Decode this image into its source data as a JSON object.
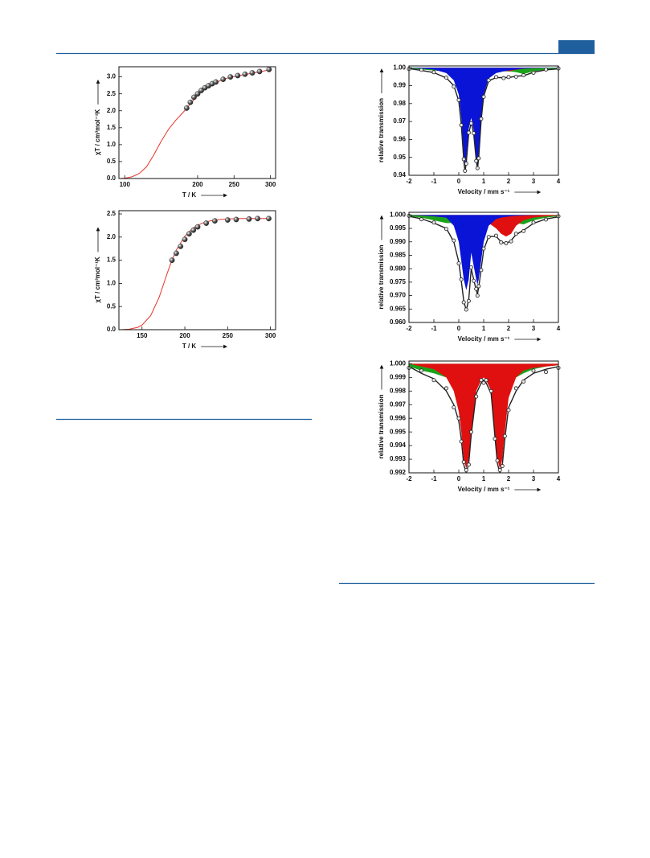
{
  "chart_data": [
    {
      "type": "scatter",
      "x_label": "T / K",
      "y_label": "χT / cm³mol⁻¹K",
      "xlim": [
        92,
        307
      ],
      "xticks": [
        100,
        200,
        250,
        300
      ],
      "ylim": [
        0,
        3.3
      ],
      "yticks": [
        {
          "value": 0,
          "label": "0.0"
        },
        0.5,
        {
          "value": 1,
          "label": "1.0"
        },
        1.5,
        {
          "value": 2,
          "label": "2.0"
        },
        2.5,
        {
          "value": 3,
          "label": "3.0"
        }
      ],
      "series": [
        {
          "style": "line",
          "color": "#e8332a",
          "x": [
            95,
            100,
            110,
            120,
            130,
            140,
            150,
            160,
            170,
            180,
            190,
            200,
            210,
            220,
            230,
            240,
            250,
            260,
            270,
            280,
            290,
            300
          ],
          "values": [
            0.005,
            0.01,
            0.05,
            0.15,
            0.35,
            0.7,
            1.1,
            1.45,
            1.72,
            1.95,
            2.2,
            2.45,
            2.65,
            2.78,
            2.88,
            2.96,
            3.01,
            3.05,
            3.09,
            3.13,
            3.17,
            3.22
          ]
        },
        {
          "style": "points",
          "color": "#333333",
          "x": [
            185,
            190,
            195,
            200,
            205,
            210,
            215,
            220,
            225,
            235,
            245,
            255,
            265,
            275,
            285,
            298
          ],
          "values": [
            2.08,
            2.25,
            2.4,
            2.5,
            2.6,
            2.68,
            2.74,
            2.8,
            2.85,
            2.93,
            3.0,
            3.04,
            3.08,
            3.12,
            3.16,
            3.22
          ]
        }
      ]
    },
    {
      "type": "scatter",
      "x_label": "T / K",
      "y_label": "χT / cm³mol⁻¹K",
      "xlim": [
        123,
        306
      ],
      "xticks": [
        150,
        200,
        250,
        300
      ],
      "ylim": [
        0,
        2.57
      ],
      "yticks": [
        {
          "value": 0,
          "label": "0.0"
        },
        0.5,
        {
          "value": 1,
          "label": "1.0"
        },
        1.5,
        {
          "value": 2,
          "label": "2.0"
        },
        2.5
      ],
      "series": [
        {
          "style": "line",
          "color": "#e8332a",
          "x": [
            125,
            135,
            145,
            150,
            160,
            170,
            180,
            185,
            190,
            200,
            210,
            220,
            230,
            240,
            260,
            300
          ],
          "values": [
            0,
            0.01,
            0.05,
            0.1,
            0.3,
            0.7,
            1.25,
            1.5,
            1.72,
            2.02,
            2.2,
            2.3,
            2.35,
            2.38,
            2.4,
            2.4
          ]
        },
        {
          "style": "points",
          "color": "#333333",
          "x": [
            185,
            190,
            195,
            200,
            205,
            210,
            215,
            225,
            235,
            250,
            260,
            275,
            285,
            298
          ],
          "values": [
            1.5,
            1.65,
            1.8,
            1.95,
            2.07,
            2.15,
            2.22,
            2.3,
            2.35,
            2.37,
            2.38,
            2.39,
            2.4,
            2.4
          ]
        }
      ]
    },
    {
      "type": "area",
      "x_label": "Velocity / mm s⁻¹",
      "y_label": "relative transmission",
      "baseline": 1,
      "xlim": [
        -2,
        4
      ],
      "xticks": [
        -2,
        -1,
        0,
        1,
        2,
        3,
        4
      ],
      "ylim": [
        0.94,
        1.001
      ],
      "yticks": [
        0.94,
        0.95,
        0.96,
        0.97,
        0.98,
        0.99,
        {
          "value": 1,
          "label": "1.00"
        }
      ],
      "x": [
        -2,
        -1.5,
        -1,
        -0.5,
        -0.2,
        0,
        0.1,
        0.2,
        0.25,
        0.3,
        0.4,
        0.5,
        0.6,
        0.7,
        0.75,
        0.8,
        0.9,
        1.0,
        1.2,
        1.5,
        1.8,
        2.0,
        2.3,
        2.6,
        3.0,
        3.5,
        4.0
      ],
      "series": [
        {
          "style": "area",
          "color": "#1aa31a",
          "values": [
            0.9995,
            0.999,
            0.9985,
            0.998,
            0.998,
            0.998,
            0.9985,
            0.9985,
            0.999,
            0.999,
            0.9993,
            0.9995,
            0.9995,
            0.9995,
            0.9995,
            0.9995,
            0.9995,
            0.9995,
            0.999,
            0.9985,
            0.998,
            0.998,
            0.9975,
            0.9965,
            0.998,
            0.999,
            0.9995
          ]
        },
        {
          "style": "area",
          "color": "#e01010",
          "values": [
            1,
            1,
            0.9998,
            0.9993,
            0.999,
            0.9985,
            0.998,
            0.998,
            0.998,
            0.998,
            0.998,
            0.998,
            0.9985,
            0.999,
            0.999,
            0.9993,
            0.9995,
            0.9996,
            0.9997,
            0.999,
            0.9985,
            0.998,
            0.9988,
            0.9995,
            0.9998,
            1,
            1
          ]
        },
        {
          "style": "area",
          "color": "#0a14d6",
          "values": [
            1,
            0.9995,
            0.999,
            0.997,
            0.993,
            0.985,
            0.972,
            0.952,
            0.945,
            0.95,
            0.966,
            0.972,
            0.965,
            0.95,
            0.945,
            0.951,
            0.972,
            0.985,
            0.994,
            0.997,
            0.998,
            0.9985,
            0.999,
            0.9995,
            0.9997,
            0.9998,
            0.9999
          ]
        },
        {
          "style": "line",
          "color": "#222222",
          "values": [
            0.9995,
            0.9985,
            0.9973,
            0.9943,
            0.99,
            0.9815,
            0.9685,
            0.9485,
            0.942,
            0.947,
            0.9633,
            0.9695,
            0.963,
            0.9485,
            0.9435,
            0.9498,
            0.971,
            0.9841,
            0.9927,
            0.9945,
            0.9945,
            0.9945,
            0.9953,
            0.9955,
            0.9975,
            0.9988,
            0.9994
          ]
        },
        {
          "style": "points",
          "color": "#222222",
          "values": [
            0.9993,
            0.9988,
            0.9975,
            0.9945,
            0.9895,
            0.982,
            0.968,
            0.949,
            0.9425,
            0.9465,
            0.9638,
            0.969,
            0.9635,
            0.948,
            0.944,
            0.9495,
            0.9715,
            0.9838,
            0.993,
            0.9948,
            0.9942,
            0.9948,
            0.995,
            0.9958,
            0.9972,
            0.999,
            0.9996
          ]
        }
      ]
    },
    {
      "type": "area",
      "x_label": "Velocity / mm s⁻¹",
      "y_label": "relative transmission",
      "baseline": 1,
      "xlim": [
        -2,
        4
      ],
      "xticks": [
        -2,
        -1,
        0,
        1,
        2,
        3,
        4
      ],
      "ylim": [
        0.96,
        1.001
      ],
      "yticks": [
        {
          "value": 0.96,
          "label": "0.960"
        },
        0.965,
        {
          "value": 0.97,
          "label": "0.970"
        },
        0.975,
        {
          "value": 0.98,
          "label": "0.980"
        },
        0.985,
        {
          "value": 0.99,
          "label": "0.990"
        },
        0.995,
        {
          "value": 1,
          "label": "1.000"
        }
      ],
      "x": [
        -2,
        -1.5,
        -1,
        -0.5,
        -0.2,
        0,
        0.1,
        0.2,
        0.3,
        0.4,
        0.5,
        0.6,
        0.7,
        0.75,
        0.8,
        0.9,
        1.0,
        1.2,
        1.5,
        1.7,
        1.9,
        2.1,
        2.3,
        2.6,
        3.0,
        3.5,
        4.0
      ],
      "series": [
        {
          "style": "area",
          "color": "#1aa31a",
          "values": [
            0.9995,
            0.999,
            0.998,
            0.997,
            0.997,
            0.9975,
            0.998,
            0.998,
            0.9985,
            0.9985,
            0.999,
            0.999,
            0.999,
            0.999,
            0.999,
            0.999,
            0.999,
            0.999,
            0.9985,
            0.998,
            0.998,
            0.998,
            0.997,
            0.9965,
            0.998,
            0.999,
            0.9995
          ]
        },
        {
          "style": "area",
          "color": "#e01010",
          "values": [
            1,
            0.9998,
            0.9995,
            0.999,
            0.997,
            0.995,
            0.9945,
            0.994,
            0.994,
            0.994,
            0.995,
            0.996,
            0.997,
            0.9975,
            0.998,
            0.998,
            0.998,
            0.997,
            0.995,
            0.993,
            0.992,
            0.993,
            0.996,
            0.998,
            0.999,
            0.9995,
            0.9998
          ]
        },
        {
          "style": "area",
          "color": "#0a14d6",
          "values": [
            1,
            0.9998,
            0.9995,
            0.999,
            0.996,
            0.99,
            0.983,
            0.976,
            0.972,
            0.976,
            0.986,
            0.981,
            0.976,
            0.974,
            0.976,
            0.983,
            0.99,
            0.996,
            0.9985,
            0.999,
            0.9993,
            0.9995,
            0.9997,
            0.9998,
            0.9999,
            1,
            1
          ]
        },
        {
          "style": "line",
          "color": "#222222",
          "values": [
            0.9995,
            0.9986,
            0.997,
            0.995,
            0.99,
            0.9825,
            0.9755,
            0.968,
            0.9645,
            0.9685,
            0.98,
            0.976,
            0.972,
            0.9705,
            0.973,
            0.98,
            0.987,
            0.992,
            0.992,
            0.99,
            0.9893,
            0.9905,
            0.9927,
            0.9943,
            0.9969,
            0.9985,
            0.9993
          ]
        },
        {
          "style": "points",
          "color": "#222222",
          "values": [
            0.9997,
            0.9984,
            0.9972,
            0.9948,
            0.9905,
            0.982,
            0.976,
            0.9675,
            0.9648,
            0.968,
            0.9805,
            0.9755,
            0.9725,
            0.97,
            0.9735,
            0.9795,
            0.9875,
            0.9918,
            0.9923,
            0.9898,
            0.9895,
            0.9902,
            0.993,
            0.994,
            0.9972,
            0.9983,
            0.9995
          ]
        }
      ]
    },
    {
      "type": "area",
      "x_label": "Velocity / mm s⁻¹",
      "y_label": "relative transmission",
      "baseline": 1,
      "xlim": [
        -2,
        4
      ],
      "xticks": [
        -2,
        -1,
        0,
        1,
        2,
        3,
        4
      ],
      "ylim": [
        0.992,
        1.0002
      ],
      "yticks": [
        0.992,
        0.993,
        0.994,
        0.995,
        0.996,
        0.997,
        0.998,
        0.999,
        {
          "value": 1,
          "label": "1.000"
        }
      ],
      "x": [
        -2,
        -1.5,
        -1,
        -0.5,
        -0.2,
        0,
        0.1,
        0.2,
        0.3,
        0.4,
        0.5,
        0.7,
        0.9,
        1.0,
        1.1,
        1.3,
        1.45,
        1.55,
        1.65,
        1.75,
        1.85,
        2.0,
        2.3,
        2.6,
        3.0,
        3.5,
        4.0
      ],
      "series": [
        {
          "style": "area",
          "color": "#1aa31a",
          "values": [
            0.9998,
            0.9995,
            0.9993,
            0.999,
            0.999,
            0.9993,
            0.9995,
            0.9996,
            0.9997,
            0.9997,
            0.9998,
            0.9998,
            0.9998,
            0.9998,
            0.9998,
            0.9998,
            0.9997,
            0.9997,
            0.9997,
            0.9996,
            0.9995,
            0.9993,
            0.999,
            0.9993,
            0.9996,
            0.9998,
            0.9999
          ]
        },
        {
          "style": "area",
          "color": "#e01010",
          "values": [
            1,
            0.9998,
            0.9996,
            0.999,
            0.998,
            0.9965,
            0.995,
            0.993,
            0.9923,
            0.993,
            0.995,
            0.998,
            0.9988,
            0.999,
            0.9988,
            0.998,
            0.995,
            0.993,
            0.9923,
            0.993,
            0.995,
            0.9975,
            0.999,
            0.9995,
            0.9997,
            0.9998,
            0.9999
          ]
        },
        {
          "style": "line",
          "color": "#222222",
          "values": [
            0.9998,
            0.9993,
            0.9989,
            0.998,
            0.997,
            0.9958,
            0.9945,
            0.9926,
            0.992,
            0.9927,
            0.9948,
            0.9978,
            0.9986,
            0.9988,
            0.9986,
            0.9978,
            0.9947,
            0.9927,
            0.992,
            0.9926,
            0.9945,
            0.9968,
            0.998,
            0.9988,
            0.9993,
            0.9996,
            0.9998
          ]
        },
        {
          "style": "points",
          "color": "#222222",
          "values": [
            0.9997,
            0.9995,
            0.9988,
            0.9982,
            0.9968,
            0.996,
            0.9943,
            0.9928,
            0.9922,
            0.9926,
            0.995,
            0.9976,
            0.9988,
            0.9986,
            0.9988,
            0.998,
            0.9945,
            0.9929,
            0.9922,
            0.9925,
            0.9947,
            0.9966,
            0.9982,
            0.9987,
            0.9995,
            0.9994,
            0.9997
          ]
        }
      ]
    }
  ]
}
